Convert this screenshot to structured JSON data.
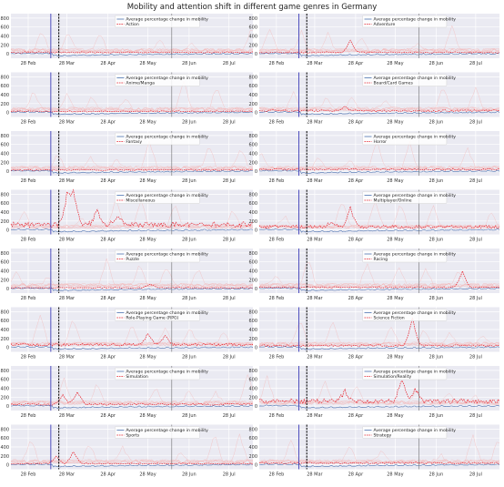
{
  "figure": {
    "title": "Mobility and attention shift in different game genres in Germany",
    "colors": {
      "background": "#eaeaf2",
      "grid": "#ffffff",
      "mobility": "#4c72b0",
      "attention": "#e8202a",
      "faint": "#f4b6b6",
      "first_marker": "#3d3db8",
      "second_marker": "#111111",
      "third_marker": "#555555"
    }
  },
  "chart_data": {
    "type": "line",
    "layout": "8 rows x 2 columns of small-multiple line charts",
    "x_ticks": [
      "28 Feb",
      "28 Mar",
      "28 Apr",
      "28 May",
      "28 Jun",
      "28 Jul"
    ],
    "y_ticks": [
      0,
      200,
      400,
      600,
      800
    ],
    "ylim": [
      -100,
      900
    ],
    "x_range": [
      "2020-02-15",
      "2020-08-15"
    ],
    "legend_placement": "top-center",
    "mobility_legend": "Average percentage change in mobility",
    "vertical_markers": [
      {
        "date": "2020-03-16",
        "style": "solid"
      },
      {
        "date": "2020-03-22",
        "style": "dashed"
      },
      {
        "date": "2020-06-15",
        "style": "solid"
      }
    ],
    "panels": [
      {
        "genre": "Action",
        "baseline": 30,
        "peaks": []
      },
      {
        "genre": "Adventure",
        "baseline": 30,
        "peaks": [
          {
            "date": "2020-04-24",
            "value": 300
          }
        ]
      },
      {
        "genre": "Anime/Manga",
        "baseline": 25,
        "peaks": []
      },
      {
        "genre": "Board/Card Games",
        "baseline": 40,
        "peaks": [
          {
            "date": "2020-04-20",
            "value": 130
          }
        ]
      },
      {
        "genre": "Fantasy",
        "baseline": 30,
        "peaks": []
      },
      {
        "genre": "Horror",
        "baseline": 40,
        "peaks": []
      },
      {
        "genre": "Miscellaneous",
        "baseline": 120,
        "peaks": [
          {
            "date": "2020-04-02",
            "value": 850
          },
          {
            "date": "2020-03-28",
            "value": 700
          },
          {
            "date": "2020-04-20",
            "value": 450
          },
          {
            "date": "2020-05-05",
            "value": 300
          }
        ]
      },
      {
        "genre": "Multiplayer/Online",
        "baseline": 70,
        "peaks": [
          {
            "date": "2020-04-24",
            "value": 520
          },
          {
            "date": "2020-04-10",
            "value": 200
          }
        ]
      },
      {
        "genre": "Puzzle",
        "baseline": 20,
        "peaks": [
          {
            "date": "2020-05-30",
            "value": 100
          }
        ]
      },
      {
        "genre": "Racing",
        "baseline": 30,
        "peaks": [
          {
            "date": "2020-07-18",
            "value": 400
          }
        ]
      },
      {
        "genre": "Role-Playing Game (RPG)",
        "baseline": 60,
        "peaks": [
          {
            "date": "2020-05-28",
            "value": 320
          },
          {
            "date": "2020-06-10",
            "value": 260
          }
        ]
      },
      {
        "genre": "Science Fiction",
        "baseline": 40,
        "peaks": [
          {
            "date": "2020-06-10",
            "value": 680
          }
        ]
      },
      {
        "genre": "Simulation",
        "baseline": 40,
        "peaks": [
          {
            "date": "2020-03-25",
            "value": 250
          },
          {
            "date": "2020-04-05",
            "value": 330
          }
        ]
      },
      {
        "genre": "Simulation/Reality",
        "baseline": 110,
        "peaks": [
          {
            "date": "2020-04-20",
            "value": 350
          },
          {
            "date": "2020-06-02",
            "value": 620
          },
          {
            "date": "2020-06-12",
            "value": 400
          }
        ]
      },
      {
        "genre": "Sports",
        "baseline": 25,
        "peaks": [
          {
            "date": "2020-03-20",
            "value": 200
          },
          {
            "date": "2020-04-02",
            "value": 300
          }
        ]
      },
      {
        "genre": "Strategy",
        "baseline": 40,
        "peaks": []
      }
    ]
  }
}
